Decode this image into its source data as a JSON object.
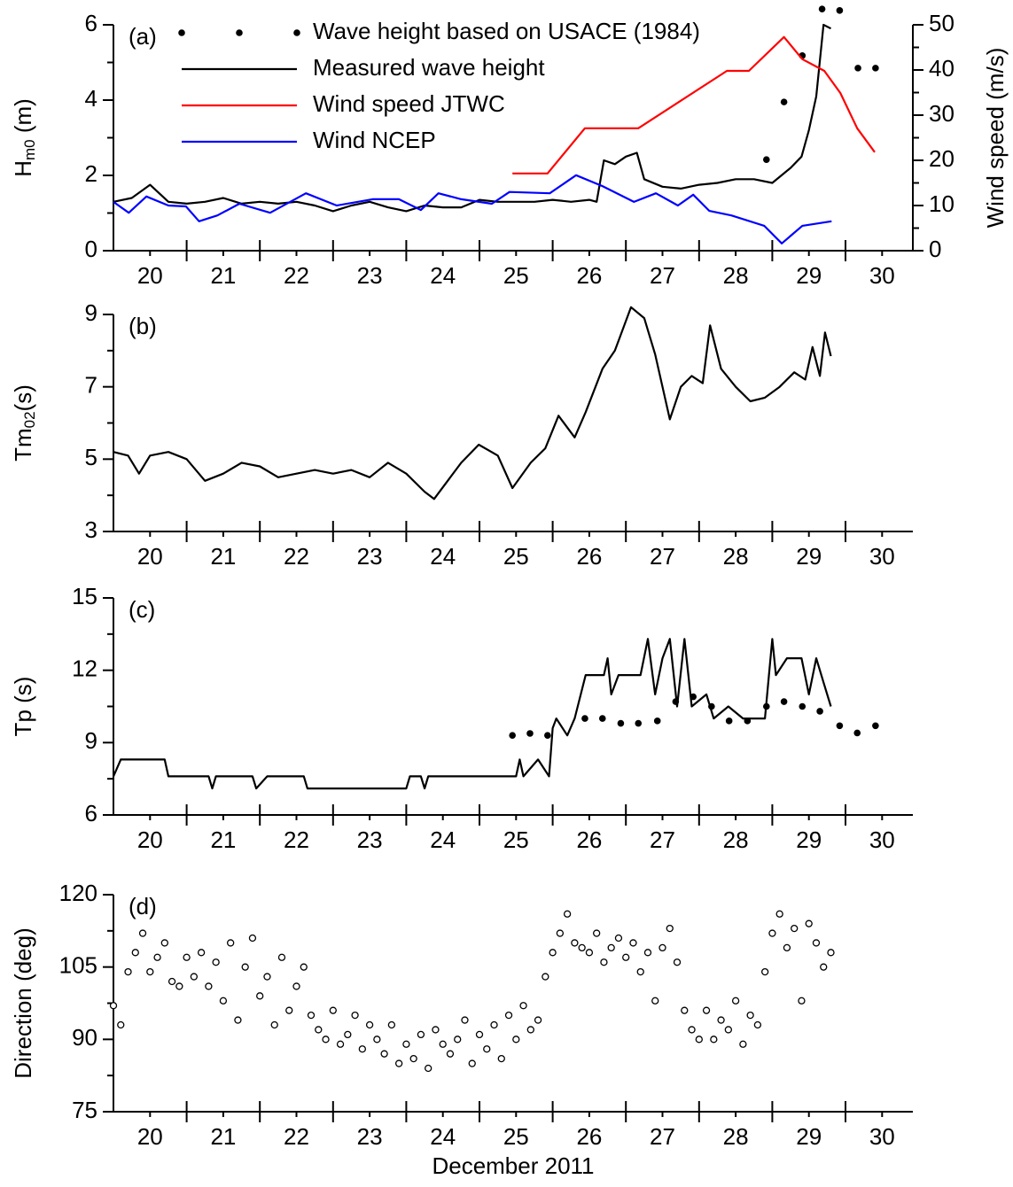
{
  "chart_data": [
    {
      "type": "line",
      "panel_label": "(a)",
      "ylabel": [
        "H",
        "m0",
        " (m)"
      ],
      "y2label": "Wind speed (m/s)",
      "xlim": [
        20,
        30.92
      ],
      "ylim": [
        0,
        6
      ],
      "yticks": [
        0,
        2,
        4,
        6
      ],
      "y2lim": [
        0,
        50
      ],
      "y2ticks": [
        0,
        10,
        20,
        30,
        40,
        50
      ],
      "xticks": [
        {
          "value": 20.5,
          "label": "20"
        },
        {
          "value": 21.5,
          "label": "21"
        },
        {
          "value": 22.5,
          "label": "22"
        },
        {
          "value": 23.5,
          "label": "23"
        },
        {
          "value": 24.5,
          "label": "24"
        },
        {
          "value": 25.5,
          "label": "25"
        },
        {
          "value": 26.5,
          "label": "26"
        },
        {
          "value": 27.5,
          "label": "27"
        },
        {
          "value": 28.5,
          "label": "28"
        },
        {
          "value": 29.5,
          "label": "29"
        },
        {
          "value": 30.5,
          "label": "30"
        }
      ],
      "series": [
        {
          "name": "Wave height based on USACE (1984)",
          "type": "scatter",
          "marker": "dot",
          "color": "#000000",
          "x": [
            28.92,
            29.16,
            29.41,
            29.68,
            29.92,
            30.17,
            30.41
          ],
          "values": [
            2.42,
            3.95,
            5.18,
            6.42,
            6.38,
            4.85,
            4.85
          ]
        },
        {
          "name": "Measured wave height",
          "type": "line",
          "color": "#000000",
          "x": [
            20.0,
            20.25,
            20.5,
            20.75,
            21.0,
            21.25,
            21.5,
            21.75,
            22.0,
            22.25,
            22.5,
            22.75,
            23.0,
            23.25,
            23.5,
            23.75,
            24.0,
            24.25,
            24.5,
            24.75,
            25.0,
            25.25,
            25.5,
            25.75,
            26.0,
            26.25,
            26.5,
            26.6,
            26.7,
            26.85,
            27.0,
            27.15,
            27.25,
            27.5,
            27.75,
            28.0,
            28.25,
            28.5,
            28.75,
            29.0,
            29.25,
            29.4,
            29.5,
            29.6,
            29.7,
            29.8
          ],
          "values": [
            1.3,
            1.4,
            1.75,
            1.3,
            1.25,
            1.3,
            1.4,
            1.25,
            1.3,
            1.25,
            1.3,
            1.2,
            1.05,
            1.2,
            1.3,
            1.15,
            1.05,
            1.2,
            1.15,
            1.15,
            1.35,
            1.3,
            1.3,
            1.3,
            1.35,
            1.3,
            1.35,
            1.3,
            2.4,
            2.3,
            2.5,
            2.6,
            1.9,
            1.7,
            1.65,
            1.75,
            1.8,
            1.9,
            1.9,
            1.8,
            2.2,
            2.5,
            3.2,
            4.1,
            6.0,
            5.9
          ]
        },
        {
          "name": "Wind speed JTWC",
          "type": "line",
          "axis": "y2",
          "color": "#ff0000",
          "x": [
            25.45,
            25.93,
            26.44,
            27.17,
            28.38,
            28.68,
            29.16,
            29.41,
            29.71,
            29.93,
            30.16,
            30.4
          ],
          "values": [
            17.1,
            17.1,
            27.1,
            27.1,
            39.8,
            39.8,
            47.3,
            42.4,
            39.8,
            34.9,
            27.1,
            21.8
          ]
        },
        {
          "name": "Wind NCEP",
          "type": "line",
          "axis": "y2",
          "color": "#0000ff",
          "x": [
            20.0,
            20.21,
            20.45,
            20.75,
            20.99,
            21.17,
            21.42,
            21.72,
            22.14,
            22.63,
            23.05,
            23.54,
            23.9,
            24.2,
            24.44,
            24.75,
            25.17,
            25.41,
            25.96,
            26.32,
            26.68,
            27.11,
            27.41,
            27.71,
            27.92,
            28.14,
            28.44,
            28.89,
            29.13,
            29.41,
            29.81
          ],
          "values": [
            10.8,
            8.4,
            12,
            10,
            9.8,
            6.5,
            7.8,
            10.4,
            8.4,
            12.7,
            10,
            11.4,
            11.4,
            9,
            12.7,
            11.4,
            10.4,
            13,
            12.7,
            16.7,
            14.3,
            10.8,
            12.7,
            10,
            12.4,
            8.8,
            7.8,
            5.5,
            1.6,
            5.5,
            6.5
          ]
        }
      ]
    },
    {
      "type": "line",
      "panel_label": "(b)",
      "ylabel": [
        "Tm",
        "02",
        "(s)"
      ],
      "xlim": [
        20,
        30.92
      ],
      "ylim": [
        3,
        9
      ],
      "yticks": [
        3,
        5,
        7,
        9
      ],
      "xticks": [
        {
          "value": 20.5,
          "label": "20"
        },
        {
          "value": 21.5,
          "label": "21"
        },
        {
          "value": 22.5,
          "label": "22"
        },
        {
          "value": 23.5,
          "label": "23"
        },
        {
          "value": 24.5,
          "label": "24"
        },
        {
          "value": 25.5,
          "label": "25"
        },
        {
          "value": 26.5,
          "label": "26"
        },
        {
          "value": 27.5,
          "label": "27"
        },
        {
          "value": 28.5,
          "label": "28"
        },
        {
          "value": 29.5,
          "label": "29"
        },
        {
          "value": 30.5,
          "label": "30"
        }
      ],
      "series": [
        {
          "type": "line",
          "color": "#000000",
          "x": [
            20.0,
            20.2,
            20.35,
            20.5,
            20.75,
            21.0,
            21.25,
            21.5,
            21.75,
            22.0,
            22.25,
            22.5,
            22.75,
            23.0,
            23.25,
            23.5,
            23.75,
            24.0,
            24.25,
            24.38,
            24.75,
            24.99,
            25.25,
            25.45,
            25.7,
            25.9,
            26.08,
            26.3,
            26.45,
            26.68,
            26.85,
            27.07,
            27.25,
            27.4,
            27.6,
            27.75,
            27.9,
            28.05,
            28.15,
            28.3,
            28.5,
            28.7,
            28.9,
            29.1,
            29.3,
            29.45,
            29.55,
            29.65,
            29.72,
            29.8
          ],
          "values": [
            5.2,
            5.1,
            4.6,
            5.1,
            5.2,
            5.0,
            4.4,
            4.6,
            4.9,
            4.8,
            4.5,
            4.6,
            4.7,
            4.6,
            4.7,
            4.5,
            4.9,
            4.6,
            4.1,
            3.9,
            4.9,
            5.4,
            5.1,
            4.2,
            4.9,
            5.3,
            6.2,
            5.6,
            6.3,
            7.5,
            8.0,
            9.2,
            8.9,
            7.9,
            6.1,
            7.0,
            7.3,
            7.1,
            8.7,
            7.5,
            7.0,
            6.6,
            6.7,
            7.0,
            7.4,
            7.2,
            8.1,
            7.3,
            8.5,
            7.85
          ]
        }
      ]
    },
    {
      "type": "line",
      "panel_label": "(c)",
      "ylabel": [
        "Tp (s)"
      ],
      "xlim": [
        20,
        30.92
      ],
      "ylim": [
        6,
        15
      ],
      "yticks": [
        6,
        9,
        12,
        15
      ],
      "xticks": [
        {
          "value": 20.5,
          "label": "20"
        },
        {
          "value": 21.5,
          "label": "21"
        },
        {
          "value": 22.5,
          "label": "22"
        },
        {
          "value": 23.5,
          "label": "23"
        },
        {
          "value": 24.5,
          "label": "24"
        },
        {
          "value": 25.5,
          "label": "25"
        },
        {
          "value": 26.5,
          "label": "26"
        },
        {
          "value": 27.5,
          "label": "27"
        },
        {
          "value": 28.5,
          "label": "28"
        },
        {
          "value": 29.5,
          "label": "29"
        },
        {
          "value": 30.5,
          "label": "30"
        }
      ],
      "series": [
        {
          "type": "line",
          "color": "#000000",
          "x": [
            20.0,
            20.1,
            20.7,
            20.75,
            21.3,
            21.35,
            21.4,
            21.9,
            21.95,
            22.1,
            22.6,
            22.65,
            24.0,
            24.05,
            24.2,
            24.25,
            24.3,
            25.5,
            25.55,
            25.6,
            25.8,
            25.95,
            26.0,
            26.05,
            26.2,
            26.3,
            26.45,
            26.7,
            26.75,
            26.8,
            26.9,
            27.2,
            27.3,
            27.4,
            27.5,
            27.6,
            27.7,
            27.8,
            27.9,
            28.1,
            28.2,
            28.4,
            28.6,
            28.9,
            29.0,
            29.05,
            29.2,
            29.4,
            29.5,
            29.6,
            29.7,
            29.8
          ],
          "values": [
            7.6,
            8.3,
            8.3,
            7.6,
            7.6,
            7.1,
            7.6,
            7.6,
            7.1,
            7.6,
            7.6,
            7.1,
            7.1,
            7.6,
            7.6,
            7.1,
            7.6,
            7.6,
            8.3,
            7.6,
            8.3,
            7.6,
            9.6,
            10.0,
            9.3,
            10.0,
            11.8,
            11.8,
            12.5,
            11.0,
            11.8,
            11.8,
            13.3,
            11.0,
            12.5,
            13.3,
            10.5,
            13.3,
            10.5,
            11.0,
            10.0,
            10.5,
            10.0,
            10.0,
            13.3,
            11.8,
            12.5,
            12.5,
            11.0,
            12.5,
            11.5,
            10.5
          ]
        },
        {
          "type": "scatter",
          "marker": "dot",
          "color": "#000000",
          "x": [
            25.45,
            25.69,
            25.93,
            26.44,
            26.68,
            26.93,
            27.17,
            27.43,
            27.68,
            27.92,
            28.17,
            28.41,
            28.66,
            28.92,
            29.16,
            29.41,
            29.65,
            29.92,
            30.16,
            30.41
          ],
          "values": [
            9.3,
            9.38,
            9.3,
            10.0,
            10.0,
            9.8,
            9.8,
            9.9,
            10.7,
            10.9,
            10.5,
            9.9,
            9.9,
            10.5,
            10.7,
            10.5,
            10.3,
            9.7,
            9.4,
            9.7
          ]
        }
      ]
    },
    {
      "type": "scatter",
      "panel_label": "(d)",
      "ylabel": [
        "Direction (deg)"
      ],
      "xlabel": "December 2011",
      "xlim": [
        20,
        30.92
      ],
      "ylim": [
        75,
        120
      ],
      "yticks": [
        75,
        90,
        105,
        120
      ],
      "xticks": [
        {
          "value": 20.5,
          "label": "20"
        },
        {
          "value": 21.5,
          "label": "21"
        },
        {
          "value": 22.5,
          "label": "22"
        },
        {
          "value": 23.5,
          "label": "23"
        },
        {
          "value": 24.5,
          "label": "24"
        },
        {
          "value": 25.5,
          "label": "25"
        },
        {
          "value": 26.5,
          "label": "26"
        },
        {
          "value": 27.5,
          "label": "27"
        },
        {
          "value": 28.5,
          "label": "28"
        },
        {
          "value": 29.5,
          "label": "29"
        },
        {
          "value": 30.5,
          "label": "30"
        }
      ],
      "series": [
        {
          "type": "scatter",
          "marker": "open-circle",
          "color": "#000000",
          "x": [
            20.0,
            20.1,
            20.2,
            20.3,
            20.4,
            20.5,
            20.6,
            20.7,
            20.8,
            20.9,
            21.0,
            21.1,
            21.2,
            21.3,
            21.4,
            21.5,
            21.6,
            21.7,
            21.8,
            21.9,
            22.0,
            22.1,
            22.2,
            22.3,
            22.4,
            22.5,
            22.6,
            22.7,
            22.8,
            22.9,
            23.0,
            23.1,
            23.2,
            23.3,
            23.4,
            23.5,
            23.6,
            23.7,
            23.8,
            23.9,
            24.0,
            24.1,
            24.2,
            24.3,
            24.4,
            24.5,
            24.6,
            24.7,
            24.8,
            24.9,
            25.0,
            25.1,
            25.2,
            25.3,
            25.4,
            25.5,
            25.6,
            25.7,
            25.8,
            25.9,
            26.0,
            26.1,
            26.2,
            26.3,
            26.4,
            26.5,
            26.6,
            26.7,
            26.8,
            26.9,
            27.0,
            27.1,
            27.2,
            27.3,
            27.4,
            27.5,
            27.6,
            27.7,
            27.8,
            27.9,
            28.0,
            28.1,
            28.2,
            28.3,
            28.4,
            28.5,
            28.6,
            28.7,
            28.8,
            28.9,
            29.0,
            29.1,
            29.2,
            29.3,
            29.4,
            29.5,
            29.6,
            29.7,
            29.8
          ],
          "values": [
            97,
            93,
            104,
            108,
            112,
            104,
            107,
            110,
            102,
            101,
            107,
            103,
            108,
            101,
            106,
            98,
            110,
            94,
            105,
            111,
            99,
            103,
            93,
            107,
            96,
            101,
            105,
            95,
            92,
            90,
            96,
            89,
            91,
            95,
            88,
            93,
            90,
            87,
            93,
            85,
            89,
            86,
            91,
            84,
            92,
            89,
            87,
            90,
            94,
            85,
            91,
            88,
            93,
            86,
            95,
            90,
            97,
            92,
            94,
            103,
            108,
            112,
            116,
            110,
            109,
            108,
            112,
            106,
            109,
            111,
            107,
            110,
            104,
            108,
            98,
            109,
            113,
            106,
            96,
            92,
            90,
            96,
            90,
            94,
            92,
            98,
            89,
            95,
            93,
            104,
            112,
            116,
            109,
            113,
            98,
            114,
            110,
            105,
            108
          ]
        }
      ]
    }
  ]
}
